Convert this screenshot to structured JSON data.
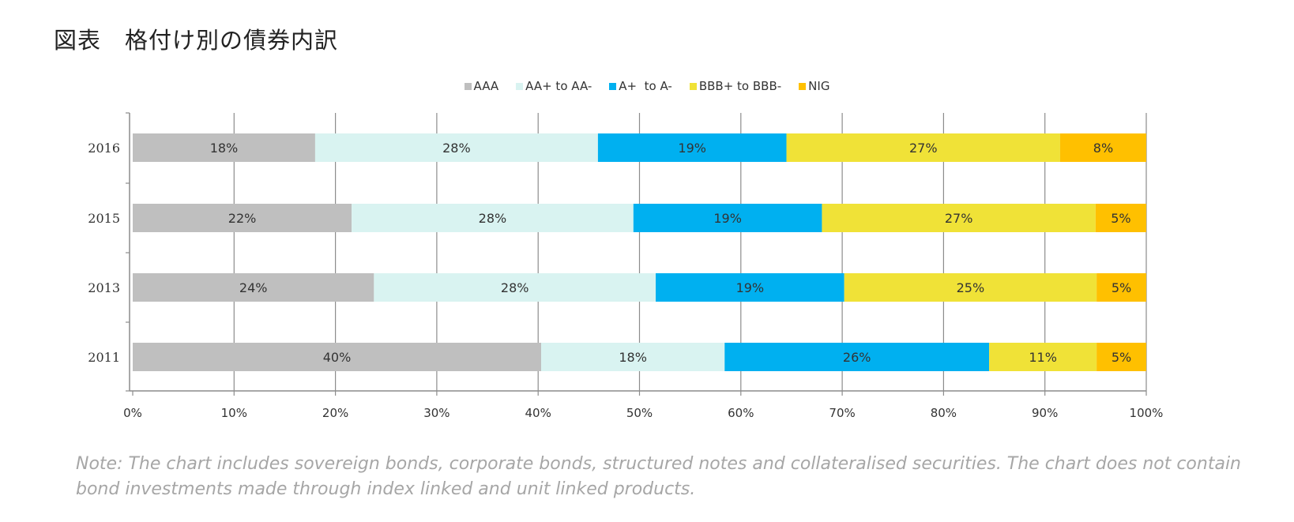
{
  "title": "図表　格付け別の債券内訳",
  "note": "Note: The chart includes sovereign bonds, corporate bonds, structured notes and collateralised securities. The chart does not contain bond investments made through index linked and unit linked products.",
  "chart_data": {
    "type": "bar",
    "orientation": "horizontal",
    "stacked": true,
    "categories": [
      "2016",
      "2015",
      "2013",
      "2011"
    ],
    "series": [
      {
        "name": "AAA",
        "color": "#bfbfbf",
        "values": [
          18,
          21.6,
          23.8,
          40.3
        ],
        "labels": [
          "18%",
          "22%",
          "24%",
          "40%"
        ]
      },
      {
        "name": "AA+ to AA-",
        "color": "#d9f3f1",
        "values": [
          27.9,
          27.8,
          27.8,
          18.1
        ],
        "labels": [
          "28%",
          "28%",
          "28%",
          "18%"
        ]
      },
      {
        "name": "A+  to A-",
        "color": "#00b0f0",
        "values": [
          18.6,
          18.6,
          18.6,
          26.1
        ],
        "labels": [
          "19%",
          "19%",
          "19%",
          "26%"
        ]
      },
      {
        "name": "BBB+ to BBB-",
        "color": "#f0e237",
        "values": [
          27,
          27,
          24.9,
          10.6
        ],
        "labels": [
          "27%",
          "27%",
          "25%",
          "11%"
        ]
      },
      {
        "name": "NIG",
        "color": "#ffc000",
        "values": [
          8.5,
          5,
          4.9,
          4.9
        ],
        "labels": [
          "8%",
          "5%",
          "5%",
          "5%"
        ]
      }
    ],
    "xlim": [
      0,
      100
    ],
    "xticks": [
      "0%",
      "10%",
      "20%",
      "30%",
      "40%",
      "50%",
      "60%",
      "70%",
      "80%",
      "90%",
      "100%"
    ],
    "grid": "vertical",
    "legend_position": "top"
  }
}
